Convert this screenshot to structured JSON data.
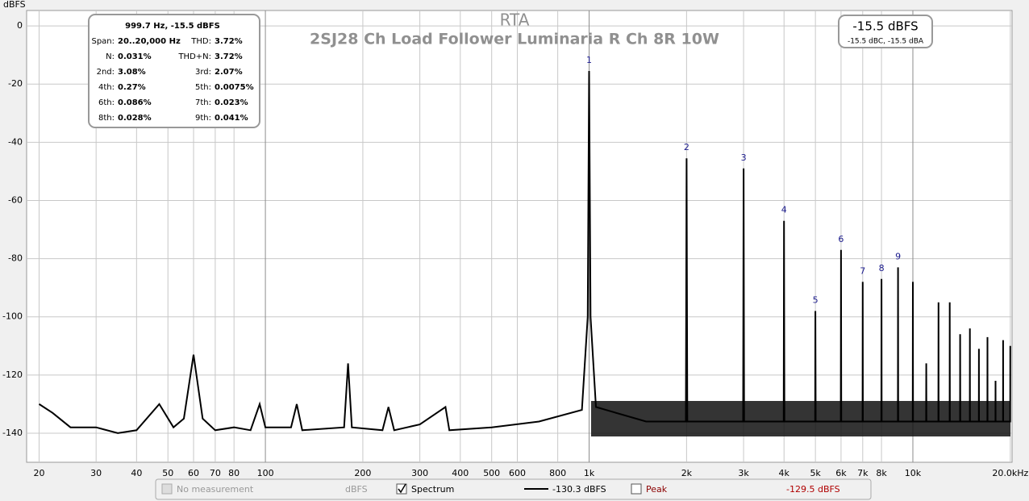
{
  "chart_data": {
    "type": "line",
    "title": "RTA",
    "subtitle": "2SJ28 Ch Load Follower Luminaria R Ch 8R 10W",
    "y_label": "dBFS",
    "xscale": "log",
    "grid": true,
    "xlim": [
      18.3,
      20250
    ],
    "ylim": [
      -150,
      5.3
    ],
    "yticks": [
      0,
      -20,
      -40,
      -60,
      -80,
      -100,
      -120,
      -140
    ],
    "xticks": [
      20,
      30,
      40,
      50,
      60,
      70,
      80,
      100,
      200,
      300,
      400,
      500,
      600,
      800,
      {
        "value": 1000,
        "label": "1k"
      },
      {
        "value": 2000,
        "label": "2k"
      },
      {
        "value": 3000,
        "label": "3k"
      },
      {
        "value": 4000,
        "label": "4k"
      },
      {
        "value": 5000,
        "label": "5k"
      },
      {
        "value": 6000,
        "label": "6k"
      },
      {
        "value": 7000,
        "label": "7k"
      },
      {
        "value": 8000,
        "label": "8k"
      },
      {
        "value": 10000,
        "label": "10k"
      },
      {
        "value": 20000,
        "label": "20.0kHz"
      }
    ],
    "series": [
      {
        "name": "Spectrum",
        "color": "#000000",
        "x": [
          20,
          22,
          25,
          30,
          35,
          40,
          47,
          52,
          56,
          60,
          64,
          70,
          80,
          90,
          96,
          100,
          120,
          125,
          130,
          175,
          180,
          185,
          230,
          240,
          250,
          300,
          360,
          370,
          500,
          700,
          950,
          990,
          1000,
          1010,
          1050,
          1500,
          1990,
          2000,
          2010,
          2990,
          3000,
          3010,
          3990,
          4000,
          4010,
          4990,
          5000,
          5010,
          5990,
          6000,
          6010,
          6990,
          7000,
          7010,
          7990,
          8000,
          8010,
          8990,
          9000,
          9010,
          9990,
          10000,
          10010,
          10990,
          11000,
          11010,
          11990,
          12000,
          12010,
          12990,
          13000,
          13010,
          13990,
          14000,
          14010,
          14990,
          15000,
          15010,
          15990,
          16000,
          16010,
          16990,
          17000,
          17010,
          17990,
          18000,
          18010,
          18990,
          19000,
          19010,
          19990,
          20000
        ],
        "values": [
          -130,
          -133,
          -138,
          -138,
          -140,
          -139,
          -130,
          -138,
          -135,
          -113,
          -135,
          -139,
          -138,
          -139,
          -130,
          -138,
          -138,
          -130,
          -139,
          -138,
          -116,
          -138,
          -139,
          -131,
          -139,
          -137,
          -131,
          -139,
          -138,
          -136,
          -132,
          -100,
          -15.5,
          -100,
          -131,
          -136,
          -136,
          -45.5,
          -136,
          -136,
          -49,
          -136,
          -136,
          -67,
          -136,
          -136,
          -98,
          -136,
          -136,
          -77,
          -136,
          -136,
          -88,
          -136,
          -136,
          -87,
          -136,
          -136,
          -83,
          -136,
          -136,
          -88,
          -136,
          -136,
          -116,
          -136,
          -136,
          -95,
          -136,
          -136,
          -95,
          -136,
          -136,
          -106,
          -136,
          -136,
          -104,
          -136,
          -136,
          -111,
          -136,
          -136,
          -107,
          -136,
          -136,
          -122,
          -136,
          -136,
          -108,
          -136,
          -136,
          -110
        ]
      }
    ],
    "annotations": [
      {
        "label": "1",
        "x": 1000,
        "y": -15.5
      },
      {
        "label": "2",
        "x": 2000,
        "y": -45.5
      },
      {
        "label": "3",
        "x": 3000,
        "y": -49
      },
      {
        "label": "4",
        "x": 4000,
        "y": -67
      },
      {
        "label": "5",
        "x": 5000,
        "y": -98
      },
      {
        "label": "6",
        "x": 6000,
        "y": -77
      },
      {
        "label": "7",
        "x": 7000,
        "y": -88
      },
      {
        "label": "8",
        "x": 8000,
        "y": -87
      },
      {
        "label": "9",
        "x": 9000,
        "y": -83
      }
    ],
    "info_box": {
      "header": "999.7 Hz, -15.5 dBFS",
      "rows": [
        [
          "Span:",
          "20..20,000 Hz",
          "THD:",
          "3.72%"
        ],
        [
          "N:",
          "0.031%",
          "THD+N:",
          "3.72%"
        ],
        [
          "2nd:",
          "3.08%",
          "3rd:",
          "2.07%"
        ],
        [
          "4th:",
          "0.27%",
          "5th:",
          "0.0075%"
        ],
        [
          "6th:",
          "0.086%",
          "7th:",
          "0.023%"
        ],
        [
          "8th:",
          "0.028%",
          "9th:",
          "0.041%"
        ]
      ]
    },
    "level_box": {
      "level": "-15.5 dBFS",
      "weighted": "-15.5 dBC, -15.5 dBA"
    },
    "legend": {
      "no_measurement": "No measurement",
      "no_measurement_unit": "dBFS",
      "spectrum": "Spectrum",
      "spectrum_value": "-130.3 dBFS",
      "peak": "Peak",
      "peak_value": "-129.5 dBFS"
    }
  }
}
